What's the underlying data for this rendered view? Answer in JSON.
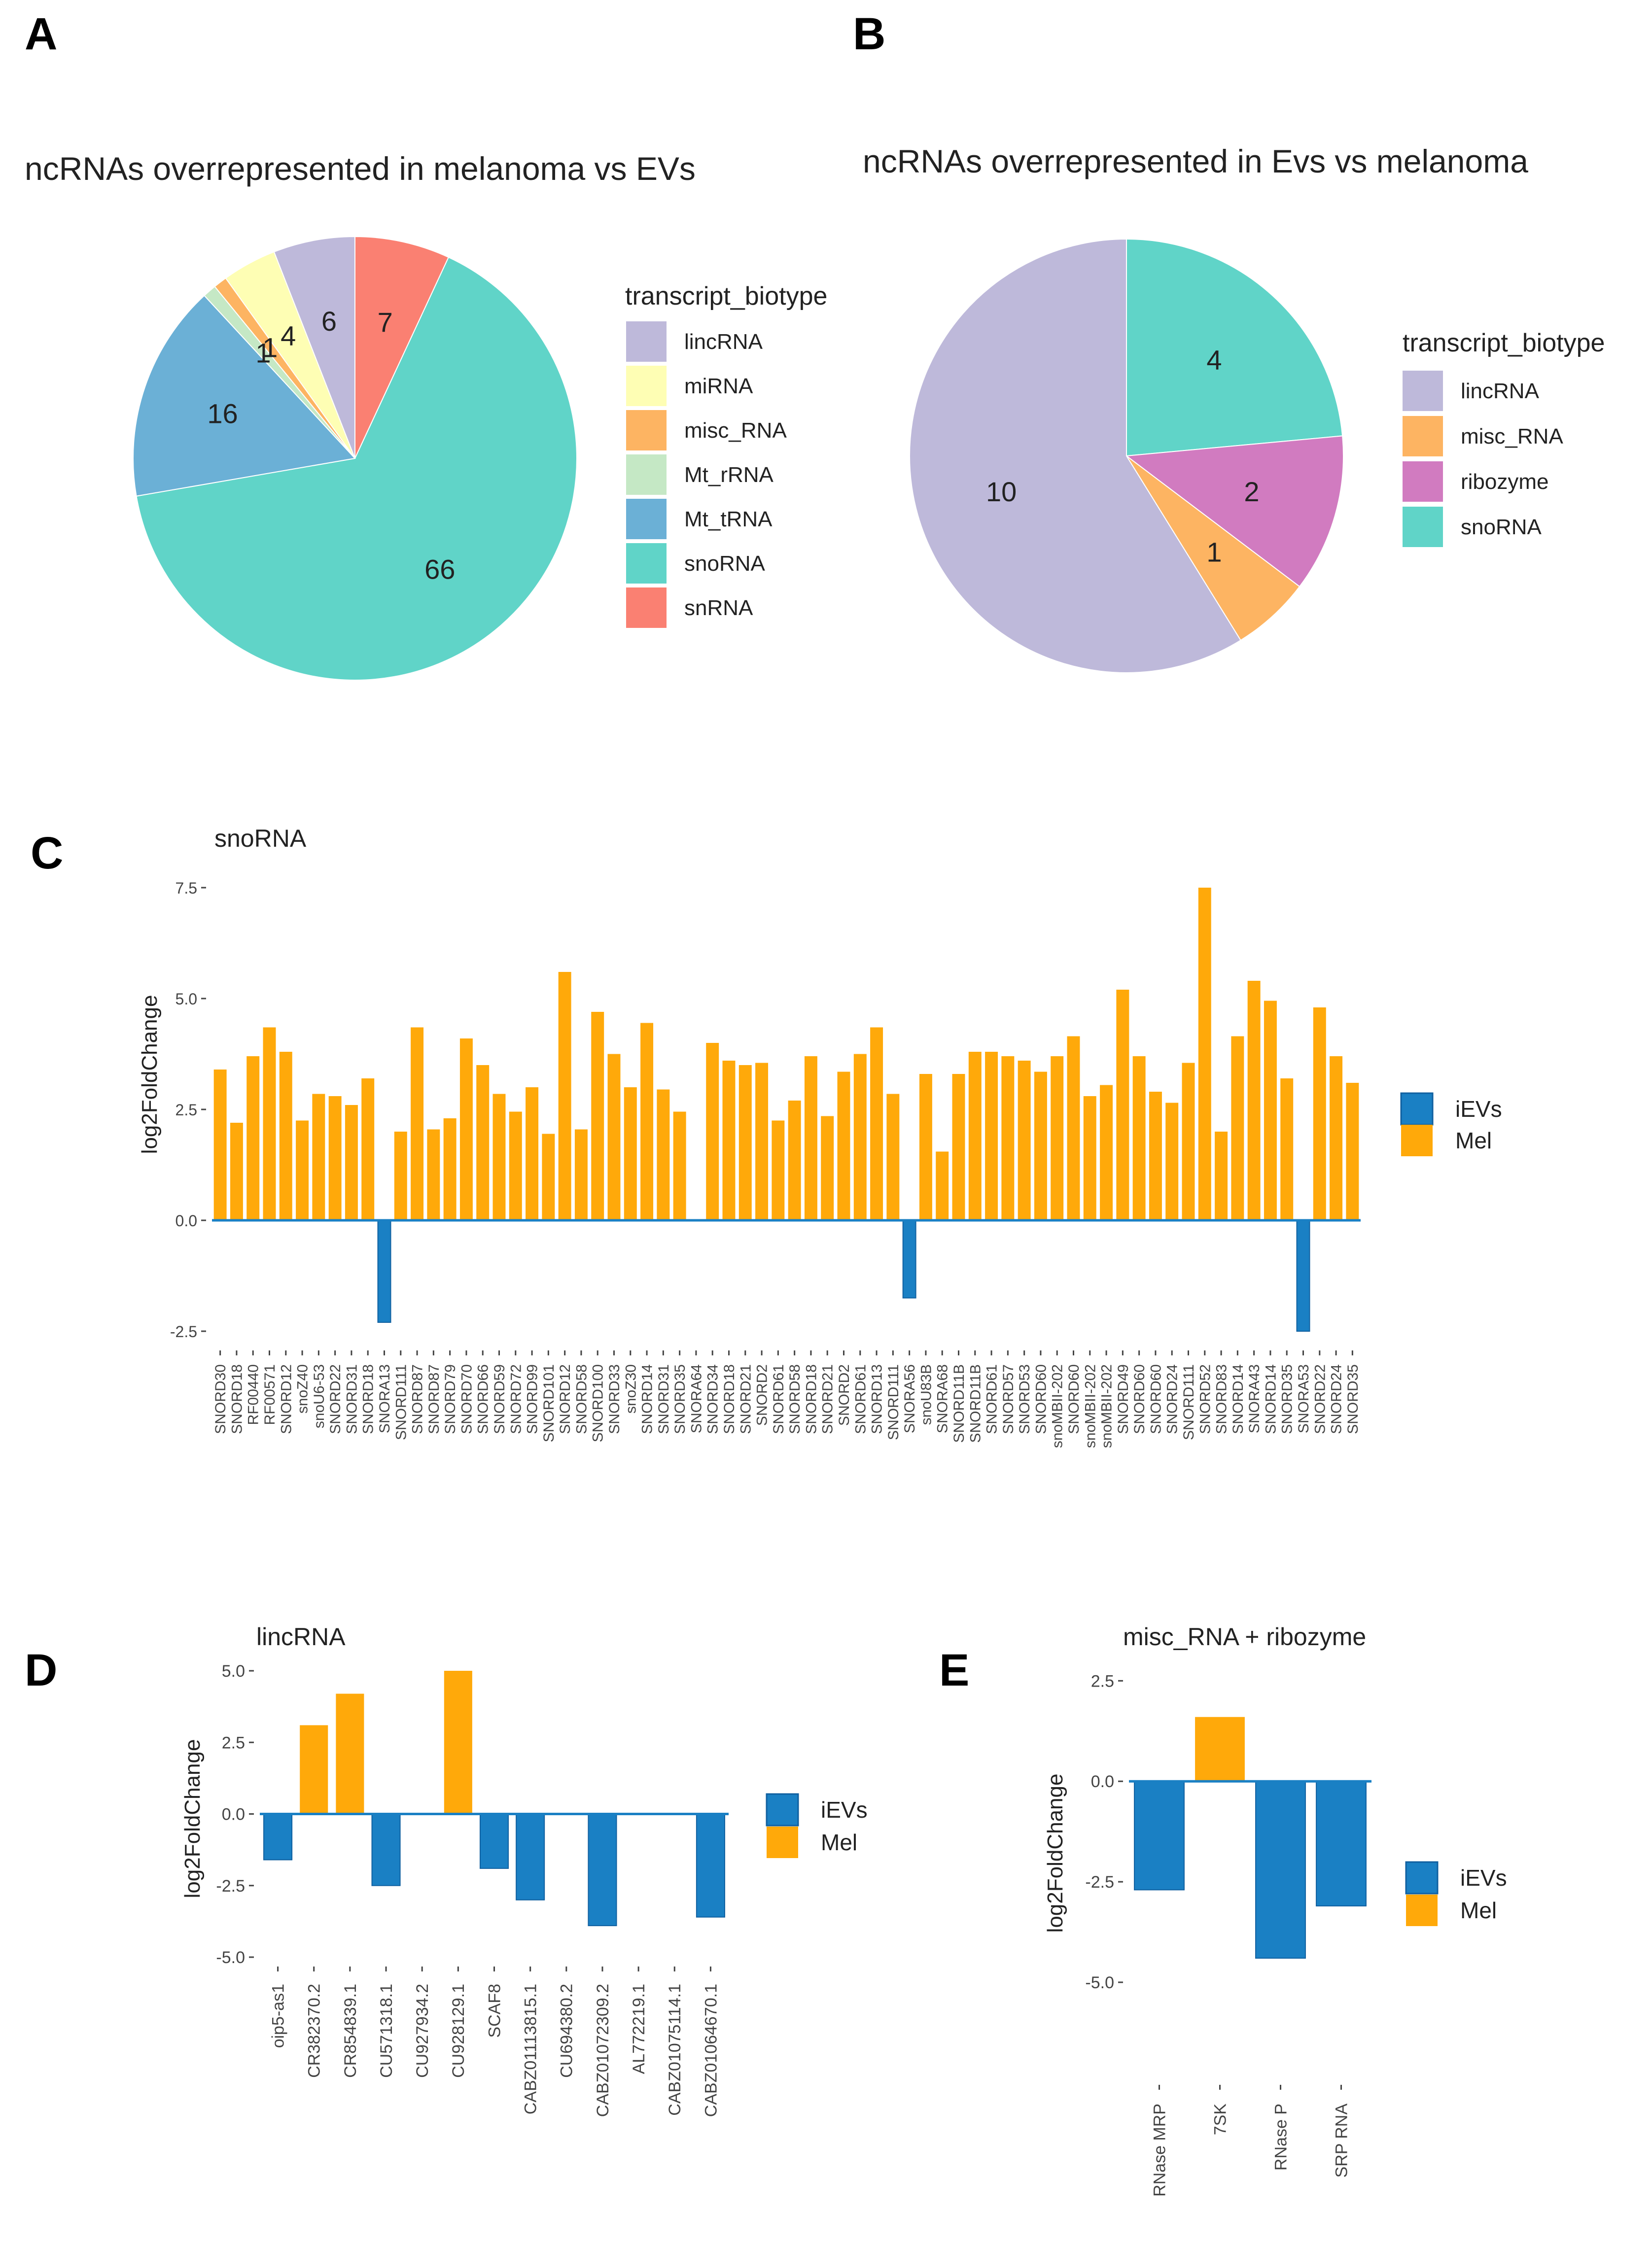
{
  "panel_labels": [
    "A",
    "B",
    "C",
    "D",
    "E"
  ],
  "colors": {
    "lincRNA": "#beb9da",
    "miRNA": "#fefeb4",
    "misc_RNA": "#fdb462",
    "Mt_rRNA": "#c5e8c5",
    "Mt_tRNA": "#6bb0d6",
    "snoRNA": "#60d4c8",
    "snRNA": "#fa8072",
    "ribozyme": "#d17bc0",
    "iEVs": "#1a80c4",
    "Mel": "#ffa90a",
    "iEVs_edge": "#1060a0"
  },
  "chart_data": [
    {
      "type": "pie",
      "title": "ncRNAs overrepresented in melanoma vs EVs",
      "legend_title": "transcript_biotype",
      "legend": [
        "lincRNA",
        "miRNA",
        "misc_RNA",
        "Mt_rRNA",
        "Mt_tRNA",
        "snoRNA",
        "snRNA"
      ],
      "slices": [
        {
          "name": "snRNA",
          "value": 7,
          "label": "7"
        },
        {
          "name": "snoRNA",
          "value": 66,
          "label": "66"
        },
        {
          "name": "Mt_tRNA",
          "value": 16,
          "label": "16"
        },
        {
          "name": "Mt_rRNA",
          "value": 1,
          "label": "1"
        },
        {
          "name": "misc_RNA",
          "value": 1,
          "label": "1"
        },
        {
          "name": "miRNA",
          "value": 4,
          "label": "4"
        },
        {
          "name": "lincRNA",
          "value": 6,
          "label": "6"
        }
      ]
    },
    {
      "type": "pie",
      "title": "ncRNAs overrepresented in Evs vs melanoma",
      "legend_title": "transcript_biotype",
      "legend": [
        "lincRNA",
        "misc_RNA",
        "ribozyme",
        "snoRNA"
      ],
      "slices": [
        {
          "name": "snoRNA",
          "value": 4,
          "label": "4"
        },
        {
          "name": "ribozyme",
          "value": 2,
          "label": "2"
        },
        {
          "name": "misc_RNA",
          "value": 1,
          "label": "1"
        },
        {
          "name": "lincRNA",
          "value": 10,
          "label": "10"
        }
      ]
    },
    {
      "type": "bar",
      "title": "snoRNA",
      "ylabel": "log2FoldChange",
      "ylim": [
        -2.8,
        7.6
      ],
      "yticks": [
        -2.5,
        0,
        2.5,
        5,
        7.5
      ],
      "ytick_labels": [
        "-2.5",
        "0.0",
        "2.5",
        "5.0",
        "7.5"
      ],
      "legend": [
        "iEVs",
        "Mel"
      ],
      "categories": [
        "SNORD30",
        "SNORD18",
        "RF00440",
        "RF00571",
        "SNORD12",
        "snoZ40",
        "snoU6-53",
        "SNORD22",
        "SNORD31",
        "SNORD18",
        "SNORA13",
        "SNORD111",
        "SNORD87",
        "SNORD87",
        "SNORD79",
        "SNORD70",
        "SNORD66",
        "SNORD59",
        "SNORD72",
        "SNORD99",
        "SNORD101",
        "SNORD12",
        "SNORD58",
        "SNORD100",
        "SNORD33",
        "snoZ30",
        "SNORD14",
        "SNORD31",
        "SNORD35",
        "SNORA64",
        "SNORD34",
        "SNORD18",
        "SNORD21",
        "SNORD2",
        "SNORD61",
        "SNORD58",
        "SNORD18",
        "SNORD21",
        "SNORD2",
        "SNORD61",
        "SNORD13",
        "SNORD111",
        "SNORA56",
        "snoU83B",
        "SNORA68",
        "SNORD11B",
        "SNORD11B",
        "SNORD61",
        "SNORD57",
        "SNORD53",
        "SNORD60",
        "snoMBII-202",
        "SNORD60",
        "snoMBII-202",
        "snoMBII-202",
        "SNORD49",
        "SNORD60",
        "SNORD60",
        "SNORD24",
        "SNORD111",
        "SNORD52",
        "SNORD83",
        "SNORD14",
        "SNORA43",
        "SNORD14",
        "SNORD35",
        "SNORA53",
        "SNORD22",
        "SNORD24",
        "SNORD35"
      ],
      "values": [
        3.4,
        2.2,
        3.7,
        4.35,
        3.8,
        2.25,
        2.85,
        2.8,
        2.6,
        3.2,
        -2.3,
        2.0,
        4.35,
        2.05,
        2.3,
        4.1,
        3.5,
        2.85,
        2.45,
        3.0,
        1.95,
        5.6,
        2.05,
        4.7,
        3.75,
        3.0,
        4.45,
        2.95,
        2.45,
        0,
        4.0,
        3.6,
        3.5,
        3.55,
        2.25,
        2.7,
        3.7,
        2.35,
        3.35,
        3.75,
        4.35,
        2.85,
        -1.75,
        3.3,
        1.55,
        3.3,
        3.8,
        3.8,
        3.7,
        3.6,
        3.35,
        3.7,
        4.15,
        2.8,
        3.05,
        5.2,
        3.7,
        2.9,
        2.65,
        3.55,
        7.5,
        2.0,
        4.15,
        5.4,
        4.95,
        3.2,
        -2.5,
        4.8,
        3.7,
        3.1
      ]
    },
    {
      "type": "bar",
      "title": "lincRNA",
      "ylabel": "log2FoldChange",
      "ylim": [
        -5.0,
        5.0
      ],
      "yticks": [
        -5,
        -2.5,
        0,
        2.5,
        5
      ],
      "ytick_labels": [
        "-5.0",
        "-2.5",
        "0.0",
        "2.5",
        "5.0"
      ],
      "legend": [
        "iEVs",
        "Mel"
      ],
      "categories": [
        "oip5-as1",
        "CR382370.2",
        "CR854839.1",
        "CU571318.1",
        "CU927934.2",
        "CU928129.1",
        "SCAF8",
        "CABZ01113815.1",
        "CU694380.2",
        "CABZ01072309.2",
        "AL772219.1",
        "CABZ01075114.1",
        "CABZ01064670.1"
      ],
      "values": [
        -1.6,
        3.1,
        4.2,
        -2.5,
        0,
        5.0,
        -1.9,
        -3.0,
        0,
        -3.9,
        0,
        0,
        -3.6
      ]
    },
    {
      "type": "bar",
      "title": "misc_RNA + ribozyme",
      "ylabel": "log2FoldChange",
      "ylim": [
        -5.0,
        2.7
      ],
      "yticks": [
        -5,
        -2.5,
        0,
        2.5
      ],
      "ytick_labels": [
        "-5.0",
        "-2.5",
        "0.0",
        "2.5"
      ],
      "legend": [
        "iEVs",
        "Mel"
      ],
      "categories": [
        "RNase MRP",
        "7SK",
        "RNase P",
        "SRP RNA"
      ],
      "values": [
        -2.7,
        1.6,
        -4.4,
        -3.1
      ]
    }
  ]
}
